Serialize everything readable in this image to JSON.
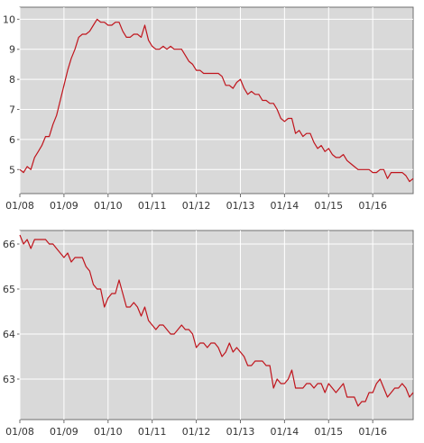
{
  "colors": {
    "series": "#c0141c",
    "plot_bg": "#d9d9d9",
    "grid": "#ffffff"
  },
  "chart_data": [
    {
      "type": "line",
      "title": "",
      "xlabel": "",
      "ylabel": "",
      "grid": true,
      "xlim": [
        "2008-01",
        "2016-12"
      ],
      "ylim": [
        4.2,
        10.4
      ],
      "x_ticks": [
        "01/08",
        "01/09",
        "01/10",
        "01/11",
        "01/12",
        "01/13",
        "01/14",
        "01/15",
        "01/16"
      ],
      "y_ticks": [
        5,
        6,
        7,
        8,
        9,
        10
      ],
      "series": [
        {
          "name": "",
          "x": [
            "2008-01",
            "2008-02",
            "2008-03",
            "2008-04",
            "2008-05",
            "2008-06",
            "2008-07",
            "2008-08",
            "2008-09",
            "2008-10",
            "2008-11",
            "2008-12",
            "2009-01",
            "2009-02",
            "2009-03",
            "2009-04",
            "2009-05",
            "2009-06",
            "2009-07",
            "2009-08",
            "2009-09",
            "2009-10",
            "2009-11",
            "2009-12",
            "2010-01",
            "2010-02",
            "2010-03",
            "2010-04",
            "2010-05",
            "2010-06",
            "2010-07",
            "2010-08",
            "2010-09",
            "2010-10",
            "2010-11",
            "2010-12",
            "2011-01",
            "2011-02",
            "2011-03",
            "2011-04",
            "2011-05",
            "2011-06",
            "2011-07",
            "2011-08",
            "2011-09",
            "2011-10",
            "2011-11",
            "2011-12",
            "2012-01",
            "2012-02",
            "2012-03",
            "2012-04",
            "2012-05",
            "2012-06",
            "2012-07",
            "2012-08",
            "2012-09",
            "2012-10",
            "2012-11",
            "2012-12",
            "2013-01",
            "2013-02",
            "2013-03",
            "2013-04",
            "2013-05",
            "2013-06",
            "2013-07",
            "2013-08",
            "2013-09",
            "2013-10",
            "2013-11",
            "2013-12",
            "2014-01",
            "2014-02",
            "2014-03",
            "2014-04",
            "2014-05",
            "2014-06",
            "2014-07",
            "2014-08",
            "2014-09",
            "2014-10",
            "2014-11",
            "2014-12",
            "2015-01",
            "2015-02",
            "2015-03",
            "2015-04",
            "2015-05",
            "2015-06",
            "2015-07",
            "2015-08",
            "2015-09",
            "2015-10",
            "2015-11",
            "2015-12",
            "2016-01",
            "2016-02",
            "2016-03",
            "2016-04",
            "2016-05",
            "2016-06",
            "2016-07",
            "2016-08",
            "2016-09",
            "2016-10",
            "2016-11",
            "2016-12"
          ],
          "values": [
            5.0,
            4.9,
            5.1,
            5.0,
            5.4,
            5.6,
            5.8,
            6.1,
            6.1,
            6.5,
            6.8,
            7.3,
            7.8,
            8.3,
            8.7,
            9.0,
            9.4,
            9.5,
            9.5,
            9.6,
            9.8,
            10.0,
            9.9,
            9.9,
            9.8,
            9.8,
            9.9,
            9.9,
            9.6,
            9.4,
            9.4,
            9.5,
            9.5,
            9.4,
            9.8,
            9.3,
            9.1,
            9.0,
            9.0,
            9.1,
            9.0,
            9.1,
            9.0,
            9.0,
            9.0,
            8.8,
            8.6,
            8.5,
            8.3,
            8.3,
            8.2,
            8.2,
            8.2,
            8.2,
            8.2,
            8.1,
            7.8,
            7.8,
            7.7,
            7.9,
            8.0,
            7.7,
            7.5,
            7.6,
            7.5,
            7.5,
            7.3,
            7.3,
            7.2,
            7.2,
            7.0,
            6.7,
            6.6,
            6.7,
            6.7,
            6.2,
            6.3,
            6.1,
            6.2,
            6.2,
            5.9,
            5.7,
            5.8,
            5.6,
            5.7,
            5.5,
            5.4,
            5.4,
            5.5,
            5.3,
            5.2,
            5.1,
            5.0,
            5.0,
            5.0,
            5.0,
            4.9,
            4.9,
            5.0,
            5.0,
            4.7,
            4.9,
            4.9,
            4.9,
            4.9,
            4.8,
            4.6,
            4.7
          ]
        }
      ]
    },
    {
      "type": "line",
      "title": "",
      "xlabel": "",
      "ylabel": "",
      "grid": true,
      "xlim": [
        "2008-01",
        "2016-12"
      ],
      "ylim": [
        62.1,
        66.3
      ],
      "x_ticks": [
        "01/08",
        "01/09",
        "01/10",
        "01/11",
        "01/12",
        "01/13",
        "01/14",
        "01/15",
        "01/16"
      ],
      "y_ticks": [
        63,
        64,
        65,
        66
      ],
      "series": [
        {
          "name": "",
          "x": [
            "2008-01",
            "2008-02",
            "2008-03",
            "2008-04",
            "2008-05",
            "2008-06",
            "2008-07",
            "2008-08",
            "2008-09",
            "2008-10",
            "2008-11",
            "2008-12",
            "2009-01",
            "2009-02",
            "2009-03",
            "2009-04",
            "2009-05",
            "2009-06",
            "2009-07",
            "2009-08",
            "2009-09",
            "2009-10",
            "2009-11",
            "2009-12",
            "2010-01",
            "2010-02",
            "2010-03",
            "2010-04",
            "2010-05",
            "2010-06",
            "2010-07",
            "2010-08",
            "2010-09",
            "2010-10",
            "2010-11",
            "2010-12",
            "2011-01",
            "2011-02",
            "2011-03",
            "2011-04",
            "2011-05",
            "2011-06",
            "2011-07",
            "2011-08",
            "2011-09",
            "2011-10",
            "2011-11",
            "2011-12",
            "2012-01",
            "2012-02",
            "2012-03",
            "2012-04",
            "2012-05",
            "2012-06",
            "2012-07",
            "2012-08",
            "2012-09",
            "2012-10",
            "2012-11",
            "2012-12",
            "2013-01",
            "2013-02",
            "2013-03",
            "2013-04",
            "2013-05",
            "2013-06",
            "2013-07",
            "2013-08",
            "2013-09",
            "2013-10",
            "2013-11",
            "2013-12",
            "2014-01",
            "2014-02",
            "2014-03",
            "2014-04",
            "2014-05",
            "2014-06",
            "2014-07",
            "2014-08",
            "2014-09",
            "2014-10",
            "2014-11",
            "2014-12",
            "2015-01",
            "2015-02",
            "2015-03",
            "2015-04",
            "2015-05",
            "2015-06",
            "2015-07",
            "2015-08",
            "2015-09",
            "2015-10",
            "2015-11",
            "2015-12",
            "2016-01",
            "2016-02",
            "2016-03",
            "2016-04",
            "2016-05",
            "2016-06",
            "2016-07",
            "2016-08",
            "2016-09",
            "2016-10",
            "2016-11",
            "2016-12"
          ],
          "values": [
            66.2,
            66.0,
            66.1,
            65.9,
            66.1,
            66.1,
            66.1,
            66.1,
            66.0,
            66.0,
            65.9,
            65.8,
            65.7,
            65.8,
            65.6,
            65.7,
            65.7,
            65.7,
            65.5,
            65.4,
            65.1,
            65.0,
            65.0,
            64.6,
            64.8,
            64.9,
            64.9,
            65.2,
            64.9,
            64.6,
            64.6,
            64.7,
            64.6,
            64.4,
            64.6,
            64.3,
            64.2,
            64.1,
            64.2,
            64.2,
            64.1,
            64.0,
            64.0,
            64.1,
            64.2,
            64.1,
            64.1,
            64.0,
            63.7,
            63.8,
            63.8,
            63.7,
            63.8,
            63.8,
            63.7,
            63.5,
            63.6,
            63.8,
            63.6,
            63.7,
            63.6,
            63.5,
            63.3,
            63.3,
            63.4,
            63.4,
            63.4,
            63.3,
            63.3,
            62.8,
            63.0,
            62.9,
            62.9,
            63.0,
            63.2,
            62.8,
            62.8,
            62.8,
            62.9,
            62.9,
            62.8,
            62.9,
            62.9,
            62.7,
            62.9,
            62.8,
            62.7,
            62.8,
            62.9,
            62.6,
            62.6,
            62.6,
            62.4,
            62.5,
            62.5,
            62.7,
            62.7,
            62.9,
            63.0,
            62.8,
            62.6,
            62.7,
            62.8,
            62.8,
            62.9,
            62.8,
            62.6,
            62.7
          ]
        }
      ]
    }
  ]
}
